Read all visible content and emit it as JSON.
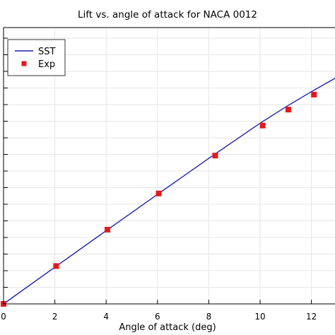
{
  "chart_data": {
    "type": "line",
    "title": "Lift vs. angle of attack for NACA 0012",
    "xlabel": "Angle of attack (deg)",
    "ylabel": "",
    "xlim": [
      0,
      13
    ],
    "x_ticks": [
      0,
      2,
      4,
      6,
      8,
      10,
      12
    ],
    "x_tick_labels": [
      "0",
      "2",
      "4",
      "6",
      "8",
      "10",
      "12"
    ],
    "ylim": [
      0,
      1.6
    ],
    "grid": true,
    "legend_position": "top-left",
    "series": [
      {
        "name": "SST",
        "style": "line",
        "color": "#1f1fb4",
        "x": [
          0,
          2,
          4,
          6,
          8,
          10,
          11,
          12,
          13
        ],
        "y": [
          0,
          0.221,
          0.441,
          0.659,
          0.876,
          1.088,
          1.186,
          1.278,
          1.365
        ]
      },
      {
        "name": "Exp",
        "style": "square-markers",
        "color": "#e31a1c",
        "x": [
          0,
          2.05,
          4.05,
          6.05,
          8.25,
          10.1,
          11.1,
          12.1
        ],
        "y": [
          0.0,
          0.228,
          0.447,
          0.665,
          0.893,
          1.074,
          1.17,
          1.26
        ]
      }
    ]
  }
}
